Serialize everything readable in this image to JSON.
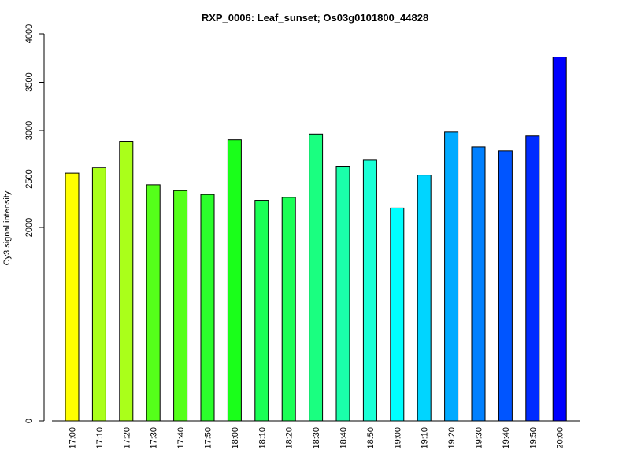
{
  "chart_data": {
    "type": "bar",
    "title": "RXP_0006: Leaf_sunset; Os03g0101800_44828",
    "xlabel": "",
    "ylabel": "Cy3 signal intensity",
    "ylim": [
      0,
      4000
    ],
    "yticks": [
      0,
      2000,
      2500,
      3000,
      3500,
      4000
    ],
    "grid": false,
    "categories": [
      "17:00",
      "17:10",
      "17:20",
      "17:30",
      "17:40",
      "17:50",
      "18:00",
      "18:10",
      "18:20",
      "18:30",
      "18:40",
      "18:50",
      "19:00",
      "19:10",
      "19:20",
      "19:30",
      "19:40",
      "19:50",
      "20:00"
    ],
    "values": [
      2560,
      2620,
      2890,
      2440,
      2380,
      2340,
      2905,
      2280,
      2310,
      2965,
      2630,
      2700,
      2200,
      2540,
      2985,
      2830,
      2790,
      2945,
      3760
    ],
    "colors": [
      "#FFFF00",
      "#AAFF1A",
      "#AAFF1A",
      "#55FF1A",
      "#55FF1A",
      "#2BFF2B",
      "#1AFF1A",
      "#1AFF55",
      "#1AFF55",
      "#1AFF80",
      "#1AFFAA",
      "#1AFFD5",
      "#00FFFF",
      "#00D5FF",
      "#00AAFF",
      "#0080FF",
      "#0055FF",
      "#002BFF",
      "#0000FF"
    ]
  }
}
